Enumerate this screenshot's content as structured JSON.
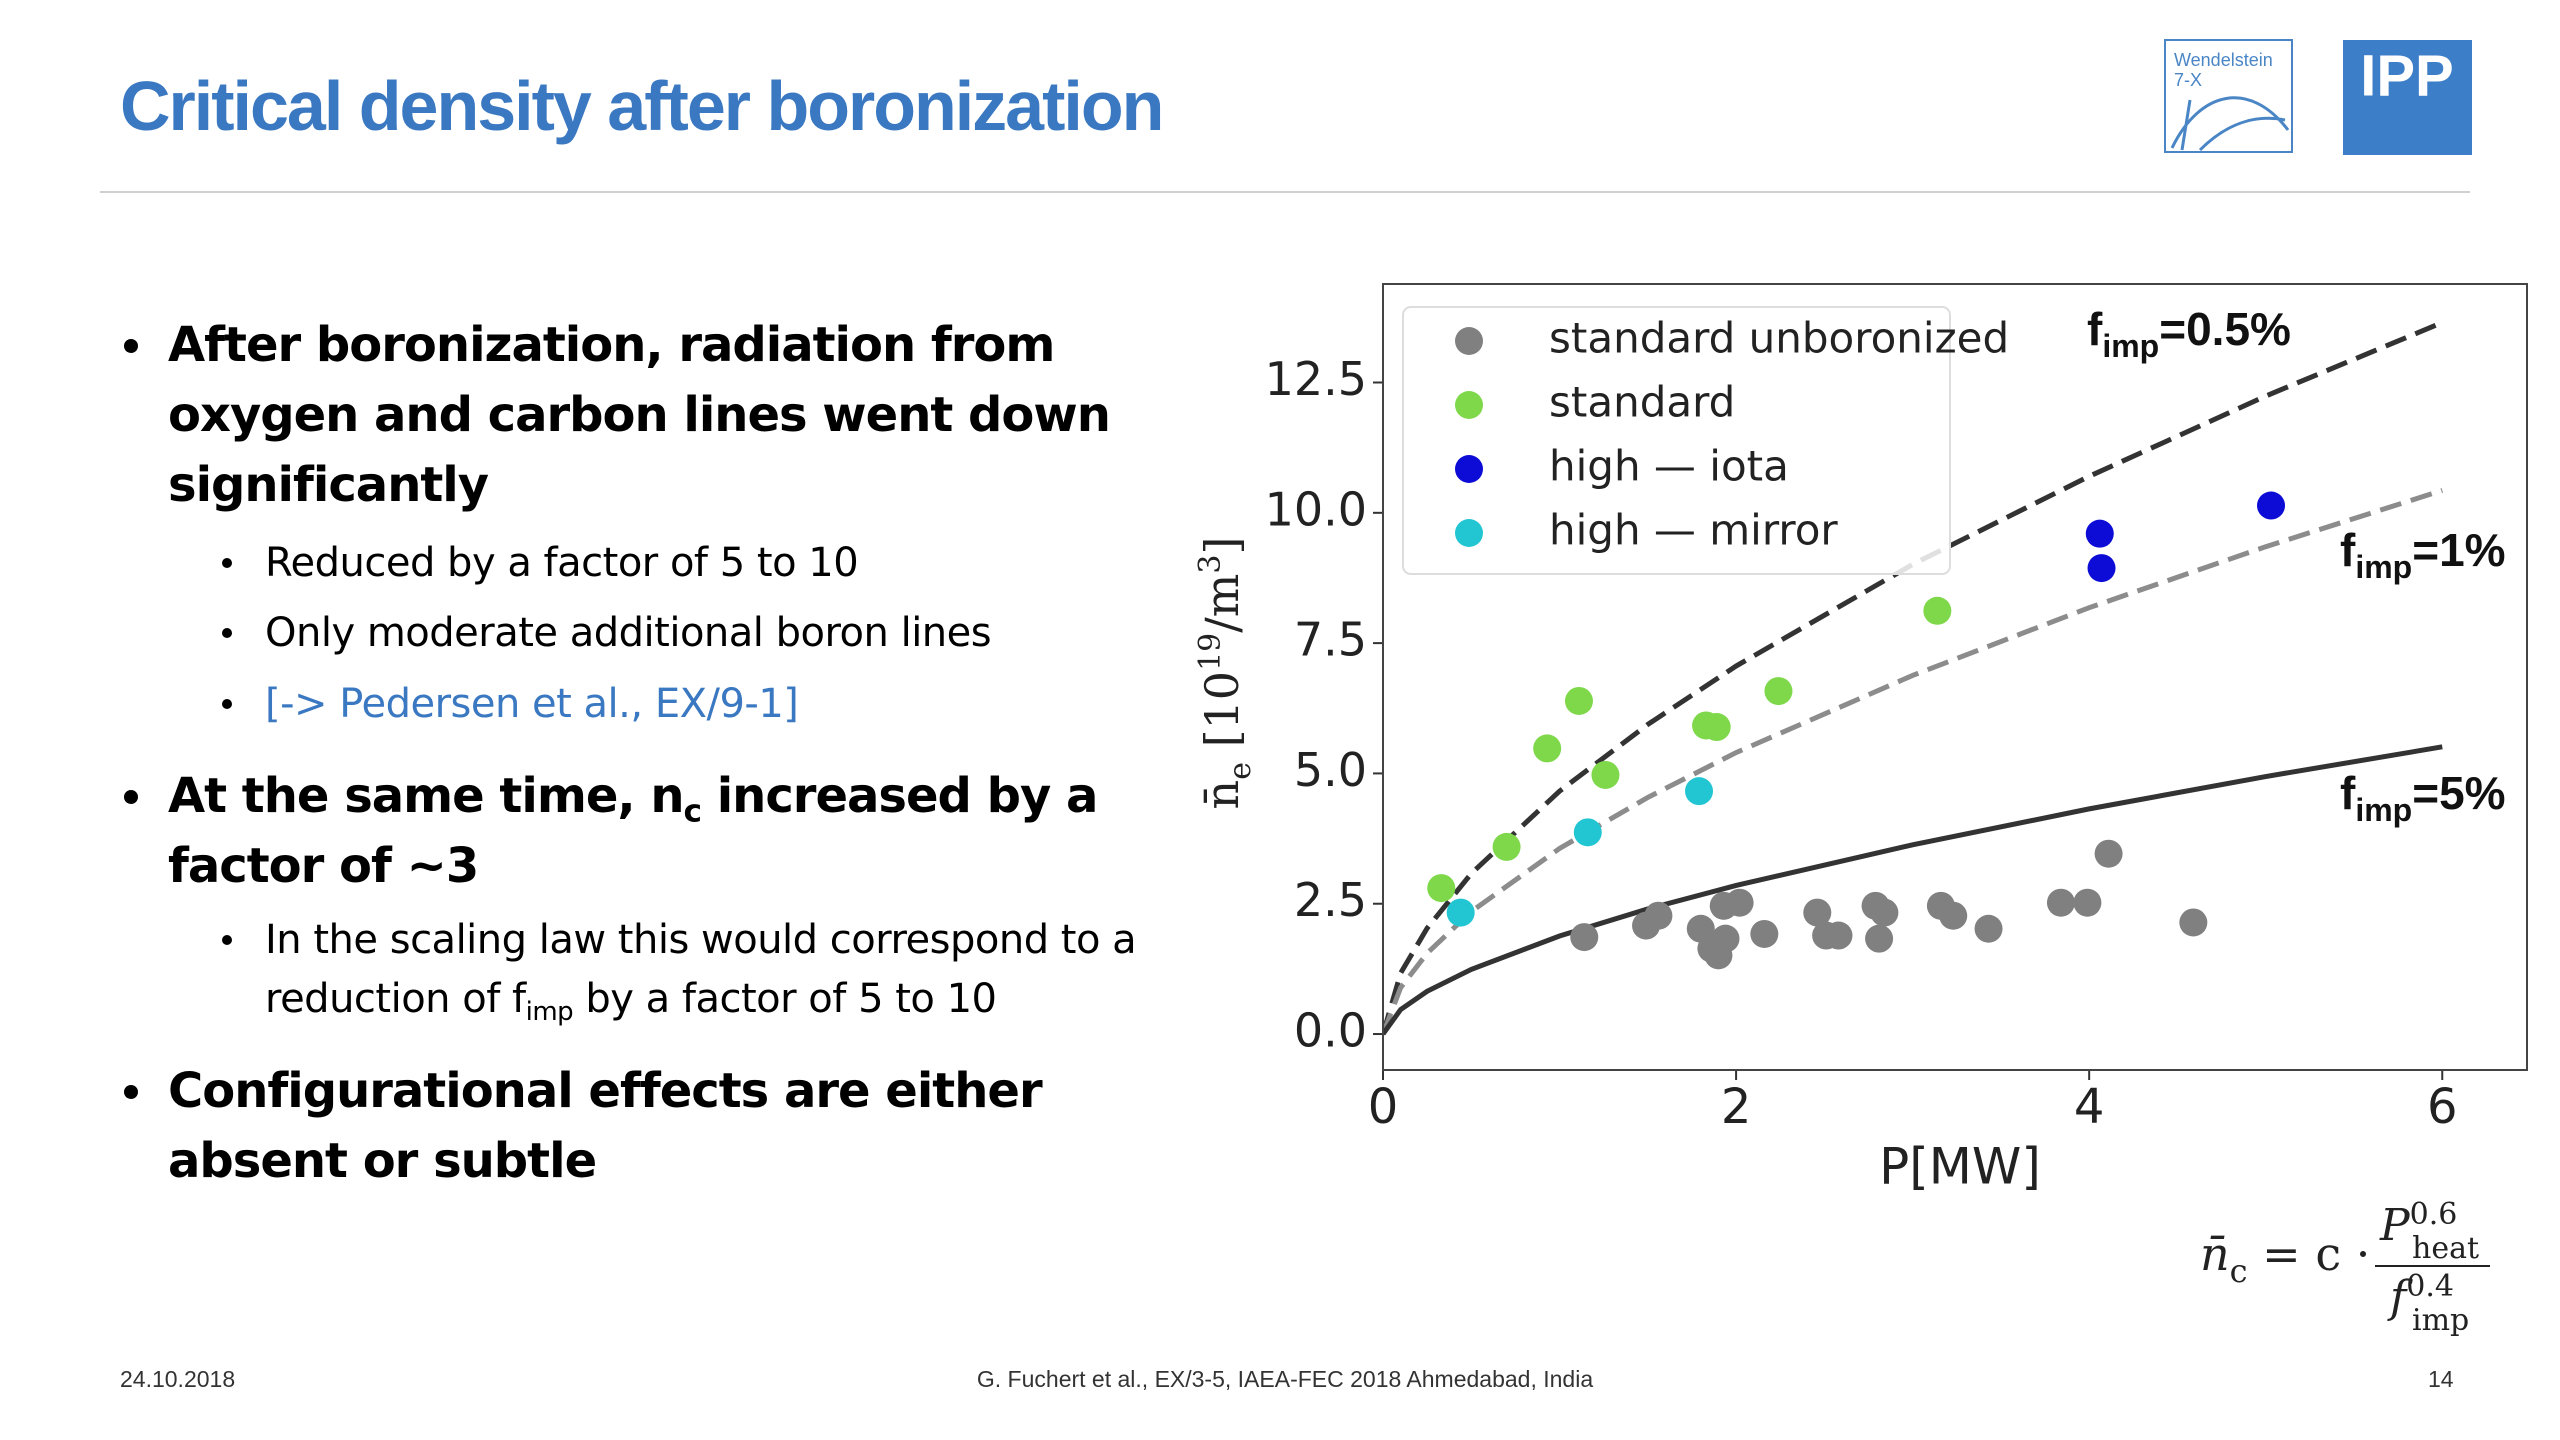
{
  "header": {
    "title": "Critical density after boronization",
    "logos": [
      "Wendelstein",
      "7-X",
      "IPP"
    ]
  },
  "bullets": [
    {
      "text": "After boronization, radiation from oxygen and carbon lines went down significantly",
      "sub": [
        "Reduced by a factor of 5 to 10",
        "Only moderate additional boron lines",
        "[-> Pedersen et al., EX/9-1]"
      ]
    },
    {
      "parts": [
        "At the same time, n",
        "c",
        " increased by a factor of ~3"
      ],
      "sub": [
        {
          "parts": [
            "In the scaling law this would correspond to a reduction of f",
            "imp",
            " by a factor of 5 to 10"
          ]
        }
      ]
    },
    {
      "text": "Configurational effects are either absent or subtle"
    }
  ],
  "footer": {
    "date": "24.10.2018",
    "citation": "G. Fuchert et al., EX/3-5, IAEA-FEC 2018 Ahmedabad, India",
    "page": "14"
  },
  "formula": {
    "lhs": [
      "n̄",
      "c",
      " = c · "
    ],
    "numerator": [
      "P",
      "0.6",
      "heat"
    ],
    "denominator": [
      "f",
      "0.4",
      "imp"
    ]
  },
  "chart_data": {
    "type": "scatter",
    "x_label": "P[MW]",
    "y_label": [
      "n̄",
      "e",
      " [10",
      "19",
      "/m",
      "3",
      "]"
    ],
    "xlim": [
      0,
      6.48
    ],
    "ylim": [
      -0.69,
      14.39
    ],
    "xticks": [
      0,
      2,
      4,
      6
    ],
    "yticks": [
      {
        "value": 0,
        "label": "0.0"
      },
      2.5,
      {
        "value": 5,
        "label": "5.0"
      },
      7.5,
      {
        "value": 10,
        "label": "10.0"
      },
      12.5
    ],
    "grid": false,
    "legend": "upper left",
    "series": [
      {
        "name": "standard unboronized",
        "color": "#808080",
        "x": [
          1.14,
          1.49,
          1.56,
          1.8,
          1.86,
          1.9,
          1.94,
          1.93,
          2.02,
          2.16,
          2.46,
          2.51,
          2.58,
          2.79,
          2.84,
          2.81,
          3.16,
          3.23,
          3.43,
          3.84,
          3.99,
          4.11,
          4.59
        ],
        "values": [
          1.86,
          2.08,
          2.27,
          2.02,
          1.64,
          1.51,
          1.83,
          2.46,
          2.52,
          1.92,
          2.33,
          1.89,
          1.89,
          2.46,
          2.33,
          1.83,
          2.46,
          2.27,
          2.02,
          2.52,
          2.52,
          3.46,
          2.14
        ]
      },
      {
        "name": "standard",
        "color": "#7ed84a",
        "x": [
          0.33,
          0.7,
          0.93,
          1.11,
          1.26,
          1.83,
          1.89,
          2.24,
          3.14
        ],
        "values": [
          2.8,
          3.59,
          5.48,
          6.39,
          4.97,
          5.92,
          5.89,
          6.58,
          8.12
        ]
      },
      {
        "name": "high — iota",
        "color": "#0c0cd6",
        "x": [
          4.06,
          4.07,
          5.03
        ],
        "values": [
          9.6,
          8.94,
          10.14
        ]
      },
      {
        "name": "high — mirror",
        "color": "#22c6d2",
        "x": [
          0.44,
          1.16,
          1.79
        ],
        "values": [
          2.33,
          3.87,
          4.66
        ]
      }
    ],
    "curves": {
      "x": [
        0,
        0.1,
        0.25,
        0.5,
        1,
        1.5,
        2,
        3,
        4,
        5,
        6
      ],
      "series": [
        {
          "label": [
            "f",
            "imp",
            "=0.5%"
          ],
          "color": "#333333",
          "style": "dashed",
          "values": [
            0,
            1.17,
            2.03,
            3.08,
            4.66,
            5.94,
            7.06,
            9.01,
            10.7,
            12.24,
            13.65
          ]
        },
        {
          "label": [
            "f",
            "imp",
            "=1%"
          ],
          "color": "#8c8c8c",
          "style": "dashed",
          "values": [
            0,
            0.89,
            1.55,
            2.35,
            3.56,
            4.54,
            5.4,
            6.88,
            8.18,
            9.35,
            10.43
          ]
        },
        {
          "label": [
            "f",
            "imp",
            "=5%"
          ],
          "color": "#333333",
          "style": "solid",
          "values": [
            0,
            0.47,
            0.82,
            1.24,
            1.88,
            2.4,
            2.85,
            3.63,
            4.32,
            4.94,
            5.51
          ]
        }
      ]
    }
  }
}
